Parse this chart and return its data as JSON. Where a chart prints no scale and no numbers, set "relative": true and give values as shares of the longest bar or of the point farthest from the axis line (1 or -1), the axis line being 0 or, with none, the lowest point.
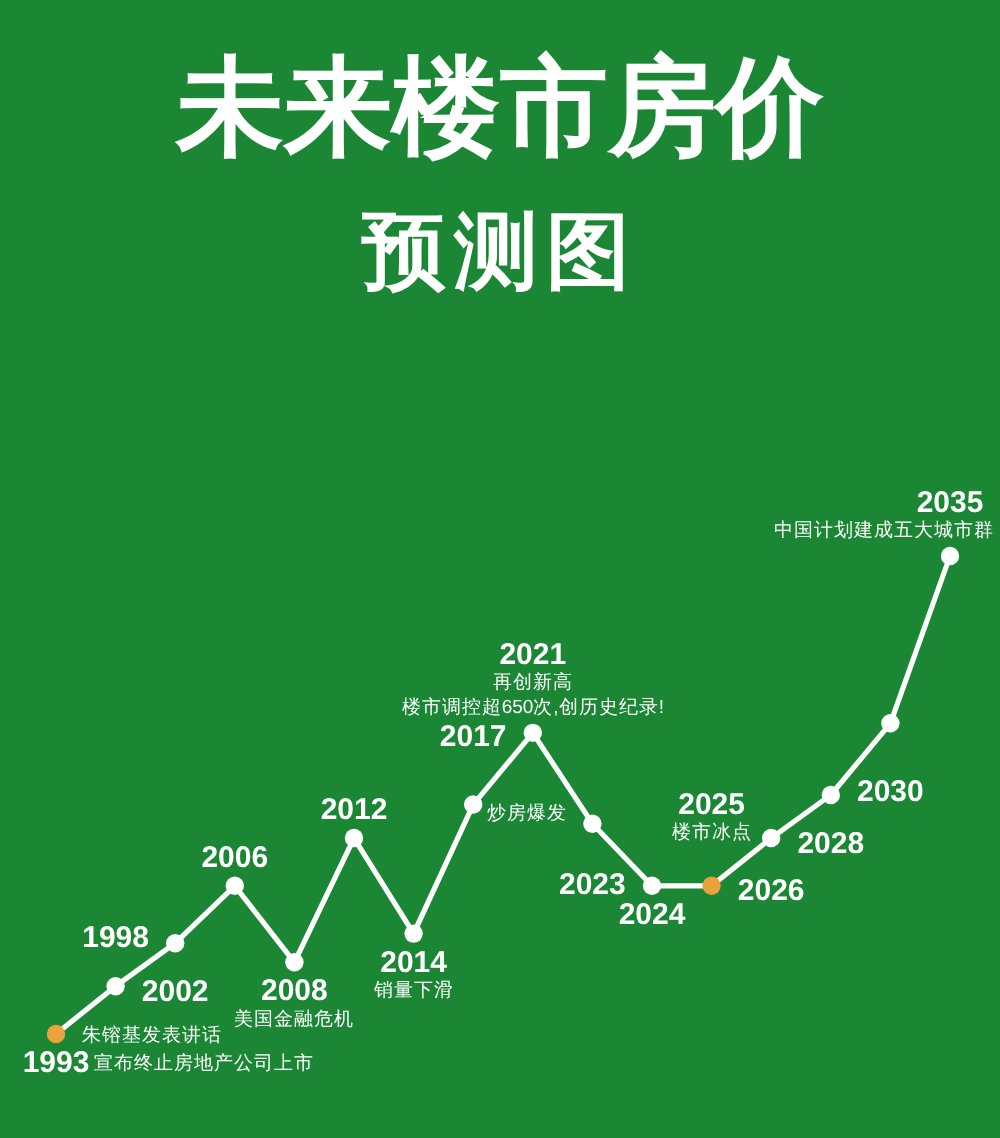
{
  "chart_data": {
    "type": "line",
    "title": "未来楼市房价",
    "subtitle": "预测图",
    "relative": true,
    "categories": [
      "1993",
      "1998",
      "2002",
      "2006",
      "2008",
      "2012",
      "2014",
      "2017",
      "2021",
      "2023",
      "2024",
      "2025",
      "2026",
      "2028",
      "2030",
      "2035"
    ],
    "series": [
      {
        "color": "#ffffff",
        "colors": [
          "#e8a33d",
          "#ffffff",
          "#ffffff",
          "#ffffff",
          "#ffffff",
          "#ffffff",
          "#ffffff",
          "#ffffff",
          "#ffffff",
          "#ffffff",
          "#ffffff",
          "#e8a33d",
          "#ffffff",
          "#ffffff",
          "#ffffff",
          "#ffffff"
        ],
        "values": [
          0,
          0.1,
          0.19,
          0.31,
          0.15,
          0.41,
          0.21,
          0.48,
          0.63,
          0.44,
          0.31,
          0.31,
          0.41,
          0.5,
          0.65,
          1
        ]
      }
    ],
    "marker": "circle",
    "line_style": "solid",
    "annotations": [
      {
        "text": "朱镕基发表讲话",
        "x": "1993",
        "y": 0
      },
      {
        "text": "宣布终止房地产公司上市",
        "x": "1993",
        "y": 0
      },
      {
        "text": "美国金融危机",
        "x": "2008",
        "y": 0.15
      },
      {
        "text": "销量下滑",
        "x": "2014",
        "y": 0.21
      },
      {
        "text": "炒房爆发",
        "x": "2017",
        "y": 0.48
      },
      {
        "text": "再创新高",
        "x": "2021",
        "y": 0.63
      },
      {
        "text": "楼市调控超650次,创历史纪录!",
        "x": "2021",
        "y": 0.63
      },
      {
        "text": "楼市冰点",
        "x": "2025",
        "y": 0.31
      },
      {
        "text": "中国计划建成五大城市群",
        "x": "2035",
        "y": 1
      }
    ]
  }
}
